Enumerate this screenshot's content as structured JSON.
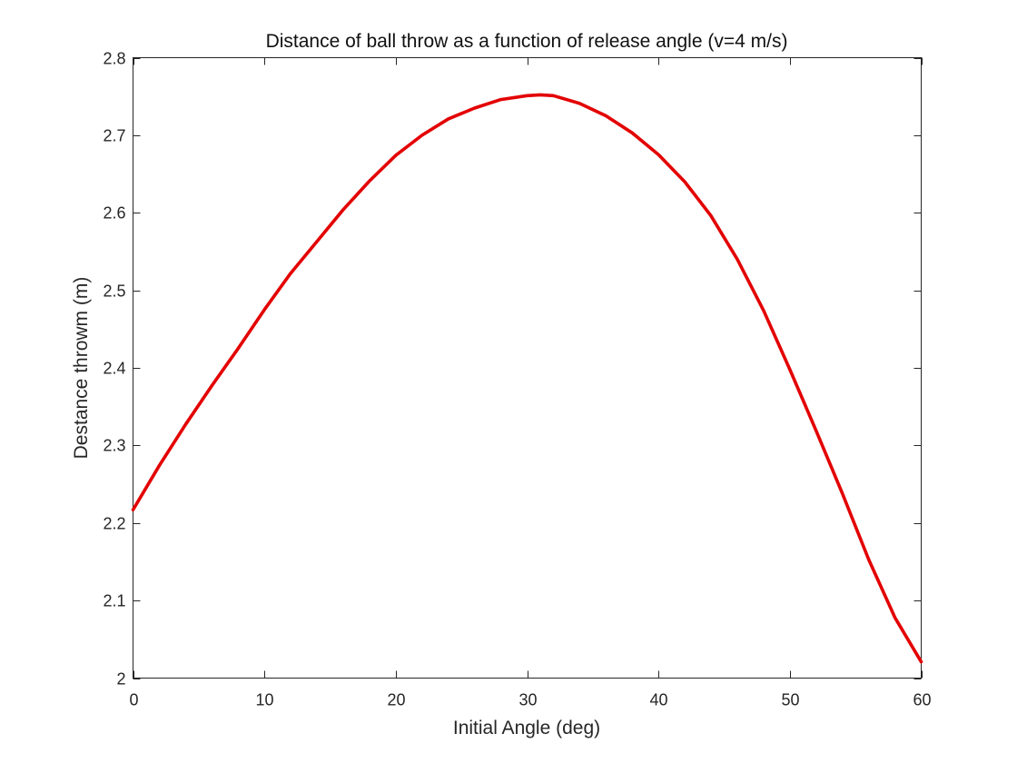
{
  "chart_data": {
    "type": "line",
    "title": "Distance of ball throw as a function of release angle (v=4 m/s)",
    "xlabel": "Initial Angle (deg)",
    "ylabel": "Destance throwm (m)",
    "xlim": [
      0,
      60
    ],
    "ylim": [
      2,
      2.8
    ],
    "xticks": [
      0,
      10,
      20,
      30,
      40,
      50,
      60
    ],
    "yticks": [
      2,
      2.1,
      2.2,
      2.3,
      2.4,
      2.5,
      2.6,
      2.7,
      2.8
    ],
    "xtick_labels": [
      "0",
      "10",
      "20",
      "30",
      "40",
      "50",
      "60"
    ],
    "ytick_labels": [
      "2",
      "2.1",
      "2.2",
      "2.3",
      "2.4",
      "2.5",
      "2.6",
      "2.7",
      "2.8"
    ],
    "grid": false,
    "series": [
      {
        "color": "#e30000",
        "x": [
          0,
          2,
          4,
          6,
          8,
          10,
          12,
          14,
          16,
          18,
          20,
          22,
          24,
          26,
          28,
          30,
          31,
          32,
          34,
          36,
          38,
          40,
          42,
          44,
          46,
          48,
          50,
          52,
          54,
          56,
          58,
          60
        ],
        "y": [
          2.217,
          2.274,
          2.327,
          2.377,
          2.425,
          2.475,
          2.522,
          2.563,
          2.604,
          2.641,
          2.674,
          2.7,
          2.721,
          2.735,
          2.746,
          2.751,
          2.752,
          2.751,
          2.741,
          2.725,
          2.703,
          2.675,
          2.64,
          2.596,
          2.54,
          2.474,
          2.398,
          2.319,
          2.238,
          2.153,
          2.078,
          2.021
        ]
      }
    ]
  }
}
